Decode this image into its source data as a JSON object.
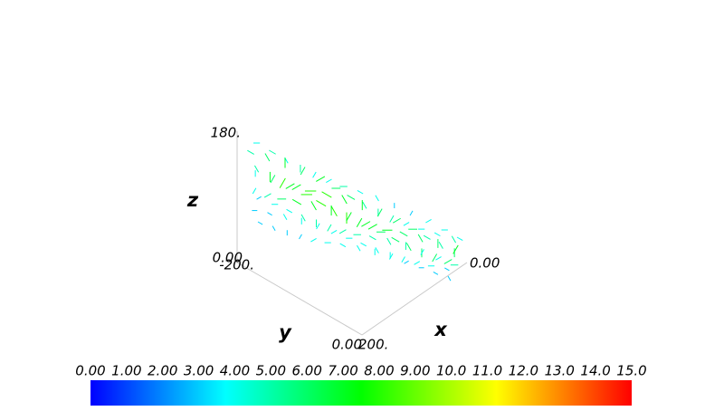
{
  "chart_data": {
    "type": "quiver3d",
    "axes": {
      "z": {
        "label": "z",
        "max_label": "180.",
        "min_label": "0.00"
      },
      "y": {
        "label": "y",
        "min_label": "-200.",
        "max_label": "0.00"
      },
      "x": {
        "label": "x",
        "min_label": "200.",
        "max_label": "0.00"
      }
    },
    "clim": [
      0,
      15
    ],
    "colormap": [
      "#0000ff",
      "#00ffff",
      "#00ff00",
      "#ffff00",
      "#ff0000"
    ],
    "colorbar_ticks": [
      {
        "value": 0,
        "label": "0.00"
      },
      {
        "value": 1,
        "label": "1.00"
      },
      {
        "value": 2,
        "label": "2.00"
      },
      {
        "value": 3,
        "label": "3.00"
      },
      {
        "value": 4,
        "label": "4.00"
      },
      {
        "value": 5,
        "label": "5.00"
      },
      {
        "value": 6,
        "label": "6.00"
      },
      {
        "value": 7,
        "label": "7.00"
      },
      {
        "value": 8,
        "label": "8.00"
      },
      {
        "value": 9,
        "label": "9.00"
      },
      {
        "value": 10,
        "label": "10.0"
      },
      {
        "value": 11,
        "label": "11.0"
      },
      {
        "value": 12,
        "label": "12.0"
      },
      {
        "value": 13,
        "label": "13.0"
      },
      {
        "value": 14,
        "label": "14.0"
      },
      {
        "value": 15,
        "label": "15.0"
      }
    ],
    "vector_magnitudes": [
      [
        4,
        5,
        4,
        5,
        4,
        4,
        5,
        4,
        4,
        3,
        3,
        4,
        4,
        4
      ],
      [
        5,
        6,
        7,
        6,
        7,
        6,
        6,
        5,
        5,
        5,
        4,
        4,
        4,
        5
      ],
      [
        5,
        7,
        8,
        7,
        8,
        8,
        7,
        7,
        6,
        6,
        6,
        5,
        5,
        6
      ],
      [
        4,
        6,
        7,
        8,
        8,
        8,
        8,
        7,
        7,
        7,
        6,
        6,
        6,
        7
      ],
      [
        4,
        5,
        6,
        7,
        7,
        7,
        7,
        7,
        6,
        6,
        6,
        6,
        6,
        6
      ],
      [
        3,
        4,
        4,
        5,
        5,
        5,
        5,
        5,
        5,
        5,
        5,
        4,
        4,
        5
      ],
      [
        3,
        3,
        4,
        4,
        4,
        4,
        4,
        4,
        4,
        4,
        4,
        4,
        4,
        3
      ],
      [
        3,
        3,
        3,
        3,
        4,
        4,
        4,
        4,
        4,
        4,
        3,
        3,
        3,
        3
      ]
    ]
  }
}
